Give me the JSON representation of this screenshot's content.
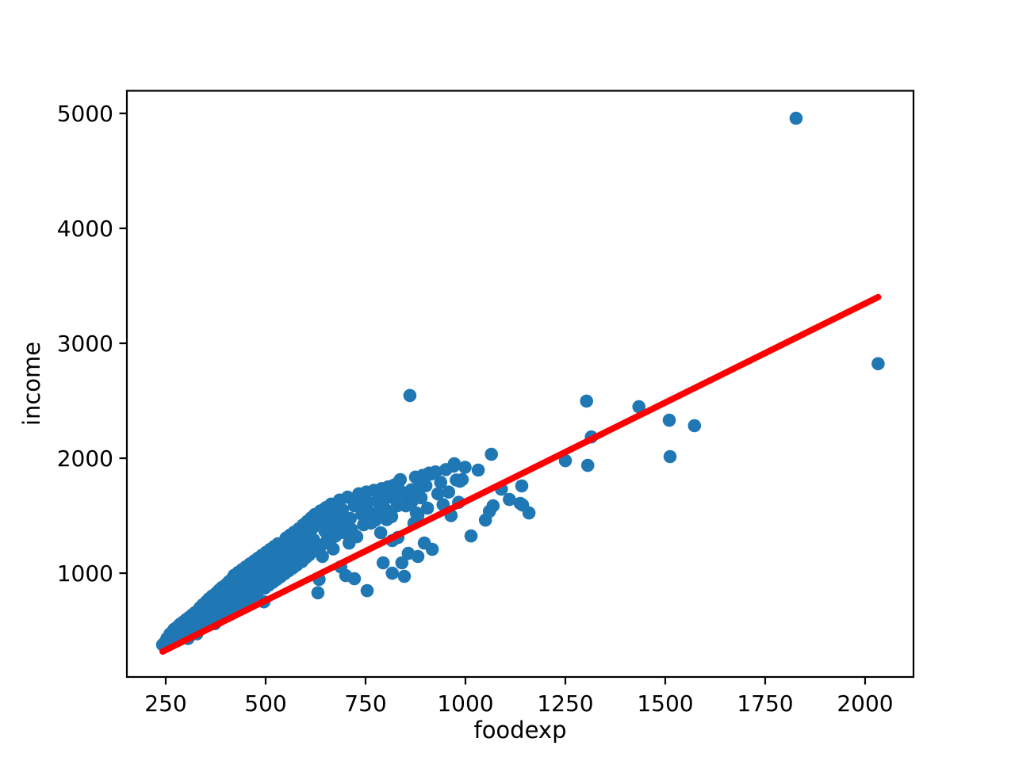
{
  "figure": {
    "background": "#ffffff"
  },
  "chart_data": {
    "type": "scatter",
    "title": "",
    "xlabel": "foodexp",
    "ylabel": "income",
    "xlim": [
      152.8,
      2121.1
    ],
    "ylim": [
      97,
      5197
    ],
    "xticks": [
      250,
      500,
      750,
      1000,
      1250,
      1500,
      1750,
      2000
    ],
    "yticks": [
      1000,
      2000,
      3000,
      4000,
      5000
    ],
    "grid": false,
    "legend": "none",
    "point_color": "#1f77b4",
    "line_color": "#ff0000",
    "fit_line": {
      "x1": 242.3,
      "y1": 318,
      "x2": 2032.7,
      "y2": 3402
    },
    "points": [
      [
        242.3,
        377.1
      ],
      [
        246,
        390
      ],
      [
        250,
        405
      ],
      [
        253,
        432
      ],
      [
        255.8,
        420.2
      ],
      [
        258,
        448
      ],
      [
        261,
        472
      ],
      [
        263,
        398
      ],
      [
        266,
        487
      ],
      [
        269,
        430
      ],
      [
        271,
        512
      ],
      [
        274,
        455
      ],
      [
        276,
        420
      ],
      [
        279,
        532
      ],
      [
        281,
        476
      ],
      [
        284,
        441
      ],
      [
        286,
        556
      ],
      [
        289,
        500
      ],
      [
        291,
        462
      ],
      [
        294,
        576
      ],
      [
        296,
        521
      ],
      [
        299,
        482
      ],
      [
        301,
        596
      ],
      [
        304,
        542
      ],
      [
        306,
        432
      ],
      [
        309,
        616
      ],
      [
        311,
        541.4
      ],
      [
        313,
        491
      ],
      [
        316,
        636
      ],
      [
        318,
        561
      ],
      [
        321,
        511
      ],
      [
        323,
        656
      ],
      [
        326,
        591
      ],
      [
        328,
        472
      ],
      [
        331,
        676
      ],
      [
        333,
        521
      ],
      [
        336,
        701
      ],
      [
        338,
        611
      ],
      [
        341,
        546
      ],
      [
        343,
        726
      ],
      [
        346,
        641
      ],
      [
        348,
        566
      ],
      [
        351,
        751
      ],
      [
        353,
        661
      ],
      [
        356,
        586
      ],
      [
        358,
        776
      ],
      [
        361,
        691
      ],
      [
        363,
        611
      ],
      [
        366,
        801
      ],
      [
        368,
        716
      ],
      [
        371,
        631
      ],
      [
        373,
        561
      ],
      [
        376,
        826
      ],
      [
        378,
        741
      ],
      [
        381,
        656
      ],
      [
        383,
        851
      ],
      [
        386,
        761
      ],
      [
        388,
        681
      ],
      [
        391,
        876
      ],
      [
        393,
        791
      ],
      [
        396,
        701
      ],
      [
        398,
        621
      ],
      [
        401,
        901
      ],
      [
        403,
        639.1
      ],
      [
        406,
        731
      ],
      [
        408,
        926
      ],
      [
        411,
        841
      ],
      [
        413,
        756
      ],
      [
        416,
        951
      ],
      [
        418,
        866
      ],
      [
        420,
        811
      ],
      [
        421,
        981
      ],
      [
        423,
        891
      ],
      [
        426,
        801
      ],
      [
        428,
        701
      ],
      [
        431,
        1006
      ],
      [
        433,
        916
      ],
      [
        436,
        821
      ],
      [
        438,
        731
      ],
      [
        441,
        1031
      ],
      [
        443,
        941
      ],
      [
        446,
        851
      ],
      [
        448,
        761
      ],
      [
        451,
        1056
      ],
      [
        453,
        966
      ],
      [
        456,
        871
      ],
      [
        458,
        781
      ],
      [
        461,
        1081
      ],
      [
        463,
        986
      ],
      [
        466,
        891
      ],
      [
        468,
        801
      ],
      [
        471,
        1106
      ],
      [
        473,
        1011
      ],
      [
        476,
        916
      ],
      [
        478,
        821
      ],
      [
        481,
        1131
      ],
      [
        483,
        1036
      ],
      [
        485.7,
        901.2
      ],
      [
        488,
        946
      ],
      [
        491,
        1156
      ],
      [
        493,
        1061
      ],
      [
        495.6,
        750.9
      ],
      [
        498,
        871
      ],
      [
        501,
        1181
      ],
      [
        503,
        1086
      ],
      [
        506,
        991
      ],
      [
        508,
        896
      ],
      [
        511,
        1206
      ],
      [
        513,
        1111
      ],
      [
        516,
        1016
      ],
      [
        518,
        921
      ],
      [
        521,
        1231
      ],
      [
        523,
        1136
      ],
      [
        526,
        1041
      ],
      [
        528,
        946
      ],
      [
        531,
        1256
      ],
      [
        533,
        1161
      ],
      [
        536,
        1166
      ],
      [
        538,
        971
      ],
      [
        540,
        1066
      ],
      [
        543,
        1186
      ],
      [
        546,
        1091
      ],
      [
        548,
        996
      ],
      [
        551,
        1306
      ],
      [
        553,
        1211
      ],
      [
        556,
        1116
      ],
      [
        558,
        1021
      ],
      [
        561,
        1331
      ],
      [
        563,
        1236
      ],
      [
        566,
        1141
      ],
      [
        568,
        1046
      ],
      [
        571,
        1356
      ],
      [
        573,
        1261
      ],
      [
        576,
        1166
      ],
      [
        578,
        1071
      ],
      [
        581,
        1179
      ],
      [
        583,
        1386
      ],
      [
        586,
        1291
      ],
      [
        588,
        1196
      ],
      [
        591,
        1101
      ],
      [
        594,
        1421
      ],
      [
        596,
        1326
      ],
      [
        599,
        1231
      ],
      [
        601,
        1136
      ],
      [
        604,
        1451
      ],
      [
        606,
        1356
      ],
      [
        609,
        1159
      ],
      [
        611,
        1261
      ],
      [
        614,
        1481
      ],
      [
        616,
        1386
      ],
      [
        620,
        1291
      ],
      [
        623,
        1511
      ],
      [
        626,
        1196
      ],
      [
        629,
        1207
      ],
      [
        630.8,
        829.4
      ],
      [
        631,
        1421
      ],
      [
        633.8,
        945.8
      ],
      [
        637,
        1541
      ],
      [
        639,
        1241
      ],
      [
        642,
        1146
      ],
      [
        645,
        1456
      ],
      [
        648,
        1366
      ],
      [
        651,
        1571
      ],
      [
        653,
        1276
      ],
      [
        655,
        1331
      ],
      [
        658,
        1486
      ],
      [
        661,
        1396
      ],
      [
        664,
        1601
      ],
      [
        666,
        1306
      ],
      [
        669,
        1211
      ],
      [
        673,
        1400
      ],
      [
        675,
        1324
      ],
      [
        679,
        1516
      ],
      [
        682,
        1426
      ],
      [
        685,
        1636
      ],
      [
        688,
        1055
      ],
      [
        688,
        1517
      ],
      [
        692,
        1552
      ],
      [
        695,
        1446
      ],
      [
        698,
        1351
      ],
      [
        700.4,
        979.2
      ],
      [
        702,
        1386
      ],
      [
        705,
        1661
      ],
      [
        709,
        1262
      ],
      [
        712,
        1476
      ],
      [
        715,
        1381
      ],
      [
        722,
        952
      ],
      [
        722,
        1586
      ],
      [
        724,
        1607
      ],
      [
        728,
        1317
      ],
      [
        733,
        1691
      ],
      [
        737,
        1601
      ],
      [
        741,
        1511
      ],
      [
        745,
        1421
      ],
      [
        752,
        1706
      ],
      [
        754,
        848
      ],
      [
        756,
        1616
      ],
      [
        760,
        1526
      ],
      [
        764,
        1436
      ],
      [
        768,
        1490
      ],
      [
        771,
        1721
      ],
      [
        775,
        1462
      ],
      [
        779,
        1631
      ],
      [
        783,
        1541
      ],
      [
        788,
        1352
      ],
      [
        791,
        1736
      ],
      [
        794,
        1090
      ],
      [
        795,
        1646
      ],
      [
        799,
        1556
      ],
      [
        803,
        1466
      ],
      [
        807,
        1751
      ],
      [
        811,
        1661
      ],
      [
        814,
        1503
      ],
      [
        815.4,
        1492.4
      ],
      [
        817,
        1283
      ],
      [
        817,
        1000
      ],
      [
        821,
        1766
      ],
      [
        825,
        1676
      ],
      [
        829,
        1586
      ],
      [
        831,
        1309.9
      ],
      [
        833,
        1793
      ],
      [
        837,
        1814
      ],
      [
        841,
        1090
      ],
      [
        844,
        1701
      ],
      [
        847,
        972
      ],
      [
        847,
        1593
      ],
      [
        851,
        1586
      ],
      [
        853,
        1611
      ],
      [
        857,
        1172
      ],
      [
        861,
        2546
      ],
      [
        865,
        1726
      ],
      [
        867,
        1628
      ],
      [
        871,
        1434
      ],
      [
        875,
        1836
      ],
      [
        877,
        1524
      ],
      [
        881,
        1503
      ],
      [
        881,
        1145
      ],
      [
        885,
        1746
      ],
      [
        889,
        1656
      ],
      [
        893,
        1851
      ],
      [
        897,
        1262
      ],
      [
        901,
        1761
      ],
      [
        905,
        1566
      ],
      [
        909,
        1871
      ],
      [
        913,
        1862
      ],
      [
        917,
        1207
      ],
      [
        925,
        1881
      ],
      [
        931,
        1691
      ],
      [
        938,
        1791
      ],
      [
        944,
        1596
      ],
      [
        951,
        1901
      ],
      [
        958,
        1706
      ],
      [
        964,
        1501
      ],
      [
        970,
        1931
      ],
      [
        972,
        1952
      ],
      [
        977,
        1811
      ],
      [
        983,
        1616
      ],
      [
        986,
        1800
      ],
      [
        992,
        1814
      ],
      [
        999,
        1921
      ],
      [
        1014,
        1324
      ],
      [
        1032,
        1897
      ],
      [
        1050,
        1462
      ],
      [
        1060,
        1538
      ],
      [
        1065,
        2034
      ],
      [
        1069,
        1586
      ],
      [
        1090,
        1731
      ],
      [
        1110,
        1641
      ],
      [
        1137,
        1607
      ],
      [
        1141,
        1759
      ],
      [
        1143,
        1593
      ],
      [
        1159,
        1524
      ],
      [
        1250,
        1979
      ],
      [
        1303,
        2497
      ],
      [
        1306,
        1938
      ],
      [
        1315,
        2185
      ],
      [
        1434,
        2448
      ],
      [
        1510,
        2331
      ],
      [
        1512,
        2014
      ],
      [
        1573,
        2283
      ],
      [
        1827.2,
        4957.8
      ],
      [
        2032.7,
        2822.5
      ]
    ]
  }
}
